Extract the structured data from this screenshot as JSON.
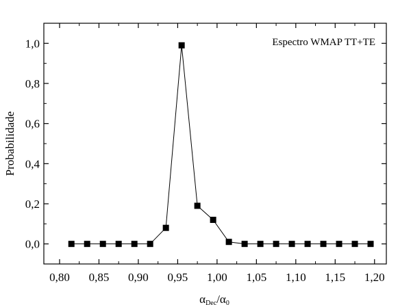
{
  "chart_data": {
    "type": "line",
    "title": "",
    "xlabel": "α_Dec/α_0",
    "xlabel_main": "α",
    "xlabel_sub1": "Dec",
    "xlabel_slash": "/α",
    "xlabel_sub2": "0",
    "ylabel": "Probabilidade",
    "annotation": "Espectro  WMAP TT+TE",
    "xlim": [
      0.78,
      1.215
    ],
    "ylim": [
      -0.1,
      1.1
    ],
    "x_ticks": [
      0.8,
      0.85,
      0.9,
      0.95,
      1.0,
      1.05,
      1.1,
      1.15,
      1.2
    ],
    "x_tick_labels": [
      "0,80",
      "0,85",
      "0,90",
      "0,95",
      "1,00",
      "1,05",
      "1,10",
      "1,15",
      "1,20"
    ],
    "y_ticks": [
      0.0,
      0.2,
      0.4,
      0.6,
      0.8,
      1.0
    ],
    "y_tick_labels": [
      "0,0",
      "0,2",
      "0,4",
      "0,6",
      "0,8",
      "1,0"
    ],
    "grid": false,
    "series": [
      {
        "marker": "square",
        "color": "#000000",
        "x": [
          0.815,
          0.835,
          0.855,
          0.875,
          0.895,
          0.915,
          0.935,
          0.955,
          0.975,
          0.995,
          1.015,
          1.035,
          1.055,
          1.075,
          1.095,
          1.115,
          1.135,
          1.155,
          1.175,
          1.195
        ],
        "y": [
          0.0,
          0.0,
          0.0,
          0.0,
          0.0,
          0.0,
          0.08,
          0.99,
          0.19,
          0.12,
          0.01,
          0.0,
          0.0,
          0.0,
          0.0,
          0.0,
          0.0,
          0.0,
          0.0,
          0.0
        ]
      }
    ]
  }
}
